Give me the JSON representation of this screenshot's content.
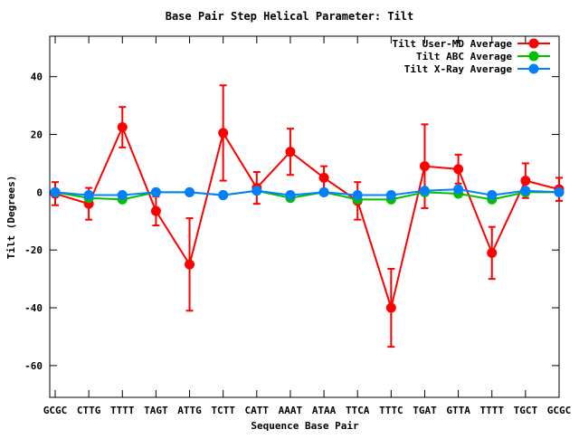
{
  "chart_data": {
    "type": "line",
    "title": "Base Pair Step Helical Parameter: Tilt",
    "xlabel": "Sequence Base Pair",
    "ylabel": "Tilt (Degrees)",
    "categories": [
      "GCGC",
      "CTTG",
      "TTTT",
      "TAGT",
      "ATTG",
      "TCTT",
      "CATT",
      "AAAT",
      "ATAA",
      "TTCA",
      "TTTC",
      "TGAT",
      "GTTA",
      "TTTT",
      "TGCT",
      "GCGC"
    ],
    "ylim": [
      -71,
      54
    ],
    "yticks": [
      -60,
      -40,
      -20,
      0,
      20,
      40
    ],
    "grid": false,
    "legend_position": "top-right",
    "series": [
      {
        "name": "Tilt User-MD Average",
        "color": "#ff0000",
        "values": [
          -0.5,
          -4,
          22.5,
          -6.5,
          -25,
          20.5,
          1.5,
          14,
          5,
          -3,
          -40,
          9,
          8,
          -21,
          4,
          1
        ],
        "errors": [
          4,
          5.5,
          7,
          5,
          16,
          16.5,
          5.5,
          8,
          4,
          6.5,
          13.5,
          14.5,
          5,
          9,
          6,
          4
        ]
      },
      {
        "name": "Tilt ABC Average",
        "color": "#00c000",
        "values": [
          0,
          -2,
          -2.5,
          0,
          0,
          -1,
          0.5,
          -2,
          0,
          -2.5,
          -2.5,
          0,
          -0.5,
          -2.5,
          0,
          0
        ]
      },
      {
        "name": "Tilt X-Ray Average",
        "color": "#0080ff",
        "values": [
          0,
          -1,
          -1,
          0,
          0,
          -1,
          0.5,
          -1,
          0,
          -1,
          -1,
          0.5,
          1,
          -1,
          0.5,
          0
        ]
      }
    ]
  }
}
